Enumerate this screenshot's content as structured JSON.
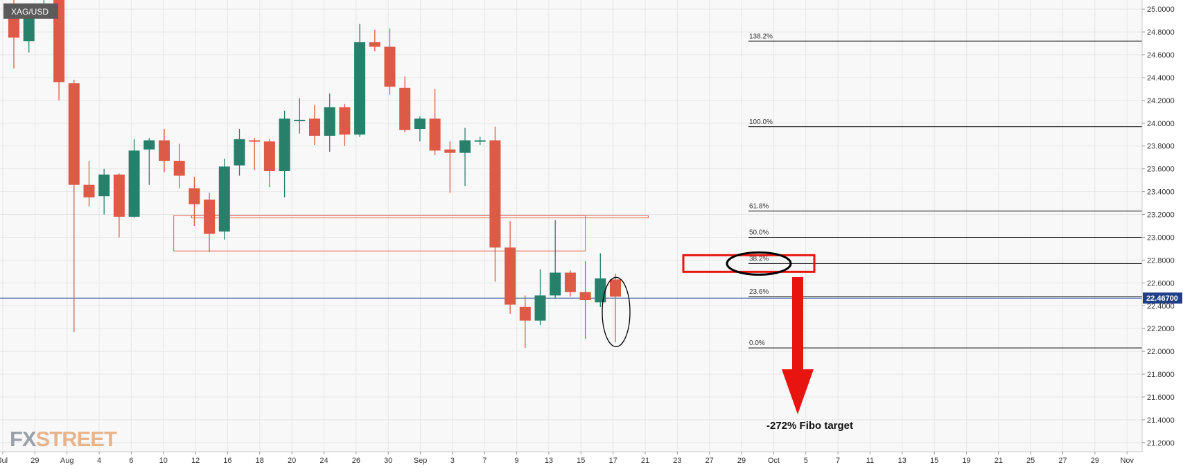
{
  "colors": {
    "background": "#f8f8f8",
    "grid": "#e6e6e6",
    "up": "#26806a",
    "down": "#dc5a46",
    "fib_line": "#000000",
    "price_line": "#1f3f88",
    "annotation_red": "#e8140f",
    "zone_red": "#e06050",
    "watermark": "#e8b48c"
  },
  "chart_data": {
    "type": "candlestick",
    "symbol": "XAG/USD",
    "timeframe": "daily",
    "last_price": "22.46700",
    "last_price_value": 22.467,
    "y_axis": {
      "min": 21.12,
      "max": 25.08,
      "tick_step": 0.2,
      "labels": [
        "21.2000",
        "21.4000",
        "21.6000",
        "21.8000",
        "22.0000",
        "22.2000",
        "22.4000",
        "22.6000",
        "22.8000",
        "23.0000",
        "23.2000",
        "23.4000",
        "23.6000",
        "23.8000",
        "24.0000",
        "24.2000",
        "24.4000",
        "24.6000",
        "24.8000",
        "25.0000"
      ],
      "position": "right"
    },
    "x_axis": {
      "labels": [
        "Jul",
        "29",
        "Aug",
        "4",
        "6",
        "10",
        "12",
        "16",
        "18",
        "20",
        "24",
        "26",
        "30",
        "Sep",
        "3",
        "7",
        "9",
        "13",
        "15",
        "17",
        "21",
        "23",
        "27",
        "29",
        "Oct",
        "5",
        "7",
        "11",
        "13",
        "15",
        "19",
        "21",
        "25",
        "27",
        "29",
        "Nov"
      ]
    },
    "grid": true,
    "candles": [
      {
        "o": 25.0,
        "h": 25.1,
        "l": 24.48,
        "c": 24.75
      },
      {
        "o": 24.72,
        "h": 25.05,
        "l": 24.62,
        "c": 25.05
      },
      {
        "o": 25.05,
        "h": 25.1,
        "l": 24.95,
        "c": 25.05
      },
      {
        "o": 25.08,
        "h": 25.1,
        "l": 24.2,
        "c": 24.36
      },
      {
        "o": 24.35,
        "h": 24.38,
        "l": 22.17,
        "c": 23.46
      },
      {
        "o": 23.46,
        "h": 23.67,
        "l": 23.27,
        "c": 23.35
      },
      {
        "o": 23.36,
        "h": 23.6,
        "l": 23.2,
        "c": 23.55
      },
      {
        "o": 23.55,
        "h": 23.56,
        "l": 23.0,
        "c": 23.18
      },
      {
        "o": 23.18,
        "h": 23.86,
        "l": 23.17,
        "c": 23.76
      },
      {
        "o": 23.77,
        "h": 23.87,
        "l": 23.46,
        "c": 23.85
      },
      {
        "o": 23.85,
        "h": 23.95,
        "l": 23.57,
        "c": 23.67
      },
      {
        "o": 23.67,
        "h": 23.82,
        "l": 23.43,
        "c": 23.54
      },
      {
        "o": 23.43,
        "h": 23.53,
        "l": 23.1,
        "c": 23.29
      },
      {
        "o": 23.33,
        "h": 23.39,
        "l": 22.87,
        "c": 23.03
      },
      {
        "o": 23.05,
        "h": 23.69,
        "l": 22.98,
        "c": 23.62
      },
      {
        "o": 23.63,
        "h": 23.95,
        "l": 23.54,
        "c": 23.86
      },
      {
        "o": 23.85,
        "h": 23.87,
        "l": 23.59,
        "c": 23.84
      },
      {
        "o": 23.84,
        "h": 23.86,
        "l": 23.44,
        "c": 23.58
      },
      {
        "o": 23.58,
        "h": 24.11,
        "l": 23.35,
        "c": 24.04
      },
      {
        "o": 24.03,
        "h": 24.22,
        "l": 23.91,
        "c": 24.03
      },
      {
        "o": 24.04,
        "h": 24.16,
        "l": 23.81,
        "c": 23.89
      },
      {
        "o": 23.89,
        "h": 24.26,
        "l": 23.75,
        "c": 24.14
      },
      {
        "o": 24.14,
        "h": 24.17,
        "l": 23.8,
        "c": 23.9
      },
      {
        "o": 23.9,
        "h": 24.87,
        "l": 23.88,
        "c": 24.71
      },
      {
        "o": 24.71,
        "h": 24.82,
        "l": 24.63,
        "c": 24.67
      },
      {
        "o": 24.67,
        "h": 24.83,
        "l": 24.25,
        "c": 24.32
      },
      {
        "o": 24.31,
        "h": 24.41,
        "l": 23.92,
        "c": 23.94
      },
      {
        "o": 23.95,
        "h": 24.06,
        "l": 23.84,
        "c": 24.04
      },
      {
        "o": 24.04,
        "h": 24.3,
        "l": 23.72,
        "c": 23.76
      },
      {
        "o": 23.77,
        "h": 23.84,
        "l": 23.39,
        "c": 23.74
      },
      {
        "o": 23.74,
        "h": 23.96,
        "l": 23.45,
        "c": 23.85
      },
      {
        "o": 23.85,
        "h": 23.88,
        "l": 23.81,
        "c": 23.85
      },
      {
        "o": 23.85,
        "h": 23.97,
        "l": 22.61,
        "c": 22.91
      },
      {
        "o": 22.91,
        "h": 23.14,
        "l": 22.33,
        "c": 22.41
      },
      {
        "o": 22.39,
        "h": 22.49,
        "l": 22.03,
        "c": 22.27
      },
      {
        "o": 22.27,
        "h": 22.72,
        "l": 22.23,
        "c": 22.49
      },
      {
        "o": 22.49,
        "h": 23.15,
        "l": 22.46,
        "c": 22.69
      },
      {
        "o": 22.69,
        "h": 22.71,
        "l": 22.48,
        "c": 22.52
      },
      {
        "o": 22.52,
        "h": 22.79,
        "l": 22.11,
        "c": 22.45
      },
      {
        "o": 22.43,
        "h": 22.86,
        "l": 22.39,
        "c": 22.64
      },
      {
        "o": 22.63,
        "h": 22.68,
        "l": 22.08,
        "c": 22.48
      }
    ],
    "fibonacci": [
      {
        "label": "138.2%",
        "value": 24.72
      },
      {
        "label": "100.0%",
        "value": 23.97
      },
      {
        "label": "61.8%",
        "value": 23.23
      },
      {
        "label": "50.0%",
        "value": 23.0
      },
      {
        "label": "38.2%",
        "value": 22.77
      },
      {
        "label": "23.6%",
        "value": 22.48
      },
      {
        "label": "0.0%",
        "value": 22.03
      }
    ],
    "zones": [
      {
        "top": 23.19,
        "bottom": 23.17
      },
      {
        "top": 23.19,
        "bottom": 22.88
      }
    ],
    "annotations": [
      {
        "text": "-272% Fibo target",
        "color": "red",
        "arrow": "down"
      }
    ]
  },
  "watermark": {
    "part1": "FX",
    "part2": "STREET"
  }
}
